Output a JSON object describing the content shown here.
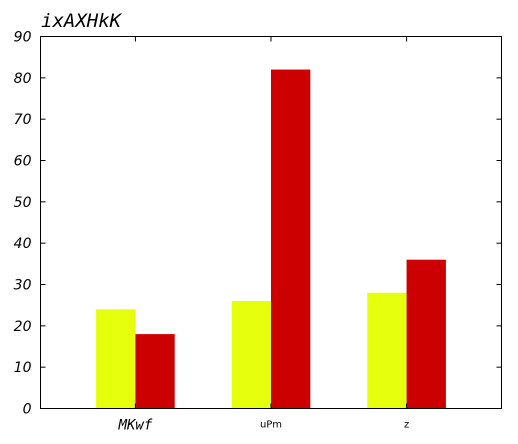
{
  "chart_data": {
    "type": "bar",
    "title": "ixAXHkK",
    "categories": [
      "MKwf",
      "uPm",
      "z"
    ],
    "series": [
      {
        "values": [
          24,
          26,
          28
        ],
        "color": "#e6ff0d"
      },
      {
        "values": [
          18,
          82,
          36
        ],
        "color": "#cc0000"
      }
    ],
    "ylim": [
      0,
      90
    ],
    "yticks": [
      "0",
      "10",
      "20",
      "30",
      "40",
      "50",
      "60",
      "70",
      "80",
      "90"
    ],
    "xlabel": "",
    "ylabel": "",
    "grid": false,
    "legend": "none"
  }
}
